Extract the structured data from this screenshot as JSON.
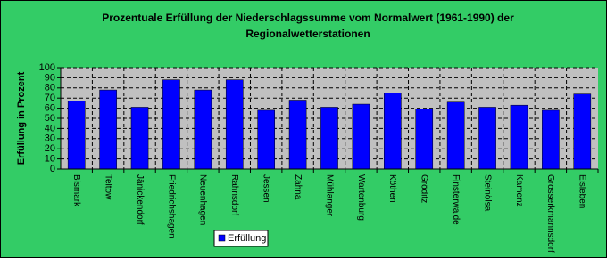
{
  "chart_data": {
    "type": "bar",
    "title": [
      "Prozentuale Erfüllung der Niederschlagssumme vom Normalwert (1961-1990) der",
      "Regionalwetterstationen"
    ],
    "y_label": "Erfüllung in Prozent",
    "categories": [
      "Bismark",
      "Teltow",
      "Jänickendorf",
      "Friedrichshagen",
      "Neuenhagen",
      "Rahnsdorf",
      "Jessen",
      "Zahna",
      "Mühlanger",
      "Wartenburg",
      "Köthen",
      "Gröditz",
      "Finsterwalde",
      "Steinölsa",
      "Kamenz",
      "Grosserkmannsdorf",
      "Eisleben"
    ],
    "series": [
      {
        "name": "Erfüllung",
        "color": "#0000ff",
        "values": [
          67,
          78,
          61,
          88,
          78,
          88,
          58,
          68,
          61,
          64,
          75,
          59,
          66,
          61,
          63,
          58,
          74
        ]
      }
    ],
    "ylim": [
      0,
      100
    ],
    "yticks": [
      0,
      10,
      20,
      30,
      40,
      50,
      60,
      70,
      80,
      90,
      100
    ],
    "grid": true
  }
}
